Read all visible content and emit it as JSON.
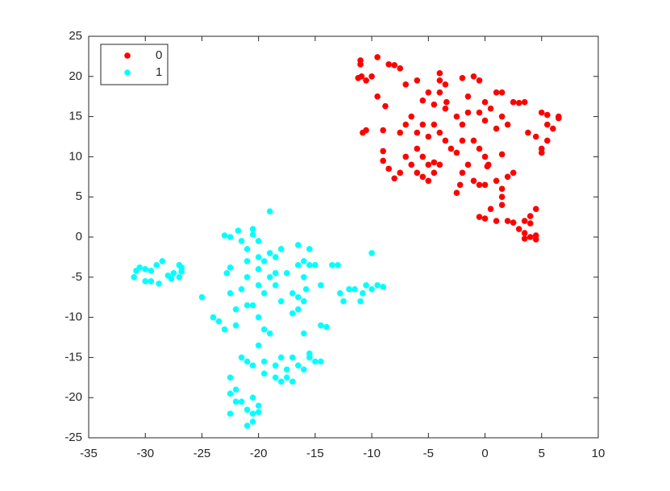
{
  "chart_data": {
    "type": "scatter",
    "xlim": [
      -35,
      10
    ],
    "xticks": [
      -35,
      -30,
      -25,
      -20,
      -15,
      -10,
      -5,
      0,
      5,
      10
    ],
    "ylim": [
      -25,
      25
    ],
    "yticks": [
      -25,
      -20,
      -15,
      -10,
      -5,
      0,
      5,
      10,
      15,
      20,
      25
    ],
    "grid": false,
    "legend": "upper left",
    "series": [
      {
        "name": "0",
        "color": "#ff0000",
        "x": [
          -11,
          -11,
          -10.9,
          -11.2,
          -10.5,
          -10,
          -9.5,
          -8.5,
          -8,
          -7.5,
          -7,
          -9.5,
          -8.8,
          -10.8,
          -10.5,
          -9,
          -9,
          -9,
          -8.5,
          -8,
          -7.5,
          -7,
          -6.5,
          -6,
          -5.5,
          -5,
          -4.5,
          -4,
          -5.5,
          -5,
          -4.5,
          -6,
          -7.5,
          -7,
          -6.5,
          -6,
          -5.5,
          -5,
          -4.5,
          -4,
          -3.5,
          -3,
          -2.5,
          -2,
          -6,
          -5,
          -4,
          -4,
          -4,
          -3.5,
          -5.5,
          -4.5,
          -3.5,
          -3.4,
          -2.5,
          -2,
          -1.5,
          -1.5,
          -2,
          -1,
          -0.5,
          -0.5,
          0,
          0,
          0.5,
          1,
          1,
          1.5,
          1.5,
          2,
          2.5,
          3,
          3.5,
          -1,
          -0.5,
          0,
          -1.5,
          -2,
          -2.2,
          -2.5,
          -1,
          -0.5,
          0,
          0.3,
          0.2,
          1,
          1.5,
          2,
          2.5,
          1.5,
          -0.5,
          0,
          0.5,
          1,
          1.5,
          1.5,
          2,
          2.5,
          3,
          3.5,
          4,
          4,
          4.5,
          3.5,
          4,
          4.5,
          3.5,
          4.5,
          5,
          5.5,
          5.5,
          6,
          6.5,
          6.5,
          5.5,
          5,
          5,
          4.5,
          3.8
        ],
        "y": [
          22,
          21.5,
          20,
          19.8,
          19.5,
          20,
          22.4,
          21.5,
          21.4,
          21,
          19,
          17.5,
          16.3,
          13,
          13.3,
          13.3,
          10.7,
          9.5,
          8.5,
          7.3,
          8,
          10,
          9,
          11,
          10,
          9,
          9.3,
          9,
          7.5,
          7,
          8,
          8,
          13,
          14,
          15,
          13,
          14,
          12.5,
          14,
          13,
          12,
          11,
          10.5,
          12,
          19.5,
          18,
          18,
          19.5,
          20.4,
          19,
          17,
          16.5,
          16,
          16.8,
          15,
          14,
          15.5,
          17.5,
          19.8,
          20,
          19.5,
          15.5,
          16.8,
          14.5,
          16,
          18,
          13.5,
          18,
          15,
          14,
          16.8,
          16.7,
          16.8,
          12,
          11,
          10,
          9,
          8,
          6.5,
          5.5,
          7,
          6.5,
          6.5,
          9,
          8.8,
          7,
          6,
          7.5,
          8,
          10.3,
          2.5,
          2.3,
          3.5,
          2,
          4,
          5,
          2,
          1.8,
          1,
          2,
          1.7,
          2.6,
          3.5,
          0.5,
          0,
          0.2,
          -0.2,
          -0.3,
          15.5,
          15.2,
          14,
          13.5,
          14.8,
          15,
          12,
          11,
          10.5,
          12.5,
          13
        ]
      },
      {
        "name": "1",
        "color": "#00ffff",
        "x": [
          -31,
          -30.8,
          -30.5,
          -30,
          -30,
          -29.5,
          -29.5,
          -29,
          -28.8,
          -28.5,
          -28,
          -27.7,
          -27.5,
          -27,
          -27,
          -26.8,
          -26.8,
          -25,
          -24,
          -23.5,
          -23,
          -22.8,
          -22.5,
          -23,
          -22.5,
          -22.5,
          -22,
          -22,
          -21.5,
          -21.8,
          -21.5,
          -21,
          -21,
          -21,
          -21,
          -20.5,
          -20.5,
          -20.5,
          -20,
          -20,
          -20,
          -20,
          -20,
          -19.5,
          -19.5,
          -19.5,
          -19,
          -19,
          -19,
          -19,
          -18.5,
          -18.5,
          -18.5,
          -18,
          -18,
          -17.5,
          -17,
          -17,
          -16.5,
          -16.5,
          -16.5,
          -16,
          -16,
          -15.8,
          -15.5,
          -15.5,
          -15,
          -14.5,
          -14.5,
          -14,
          -13.5,
          -13,
          -12.8,
          -12.5,
          -12,
          -11.5,
          -11,
          -10.8,
          -10.5,
          -10,
          -9.5,
          -9,
          -10,
          -16,
          -16.5,
          -22.5,
          -22.5,
          -22.5,
          -22,
          -22,
          -21.5,
          -21.5,
          -21,
          -21,
          -21,
          -20.5,
          -20.5,
          -20.5,
          -20.5,
          -20,
          -20,
          -20,
          -19.5,
          -19.5,
          -18.5,
          -18.5,
          -18,
          -18,
          -17.5,
          -17.5,
          -17,
          -17,
          -16.5,
          -16,
          -15.5,
          -15,
          -14.5,
          -16,
          -15.5
        ],
        "y": [
          -5,
          -4.2,
          -3.8,
          -4,
          -5.5,
          -5.5,
          -4.2,
          -3.5,
          -5.8,
          -3,
          -4.8,
          -5.2,
          -4.5,
          -3.5,
          -5,
          -4.3,
          -3.8,
          -7.5,
          -10,
          -10.5,
          -11.5,
          -4.5,
          -3.8,
          0.2,
          0,
          -7,
          -9,
          -11,
          -6.5,
          0.8,
          -0.5,
          -1.5,
          -3,
          -5,
          -8.5,
          -8.5,
          0.3,
          1,
          -0.5,
          -2.5,
          -4,
          -6,
          -10,
          -11.5,
          -7,
          -3,
          3.2,
          -2,
          -5,
          -12,
          -4.5,
          -2.5,
          -6,
          -1.5,
          -8,
          -4.5,
          -7,
          -9.5,
          -3.5,
          -7.5,
          -9,
          -8,
          -5,
          -6.5,
          -1.5,
          -3.5,
          -3.5,
          -6,
          -11,
          -11.2,
          -3.5,
          -3.5,
          -7,
          -8,
          -6.5,
          -6.5,
          -8,
          -7,
          -6,
          -6.5,
          -6,
          -6.2,
          -2,
          -3,
          -1,
          -17.5,
          -19.5,
          -22,
          -19,
          -20.5,
          -15,
          -20.5,
          -23.5,
          -21.5,
          -15.5,
          -23,
          -22,
          -20,
          -16,
          -21,
          -21.8,
          -13.5,
          -17,
          -15.5,
          -16,
          -17.5,
          -15,
          -18,
          -16.5,
          -17.5,
          -18,
          -15,
          -16,
          -16.5,
          -15,
          -15.5,
          -15.5,
          -12,
          -14.5
        ]
      }
    ]
  }
}
